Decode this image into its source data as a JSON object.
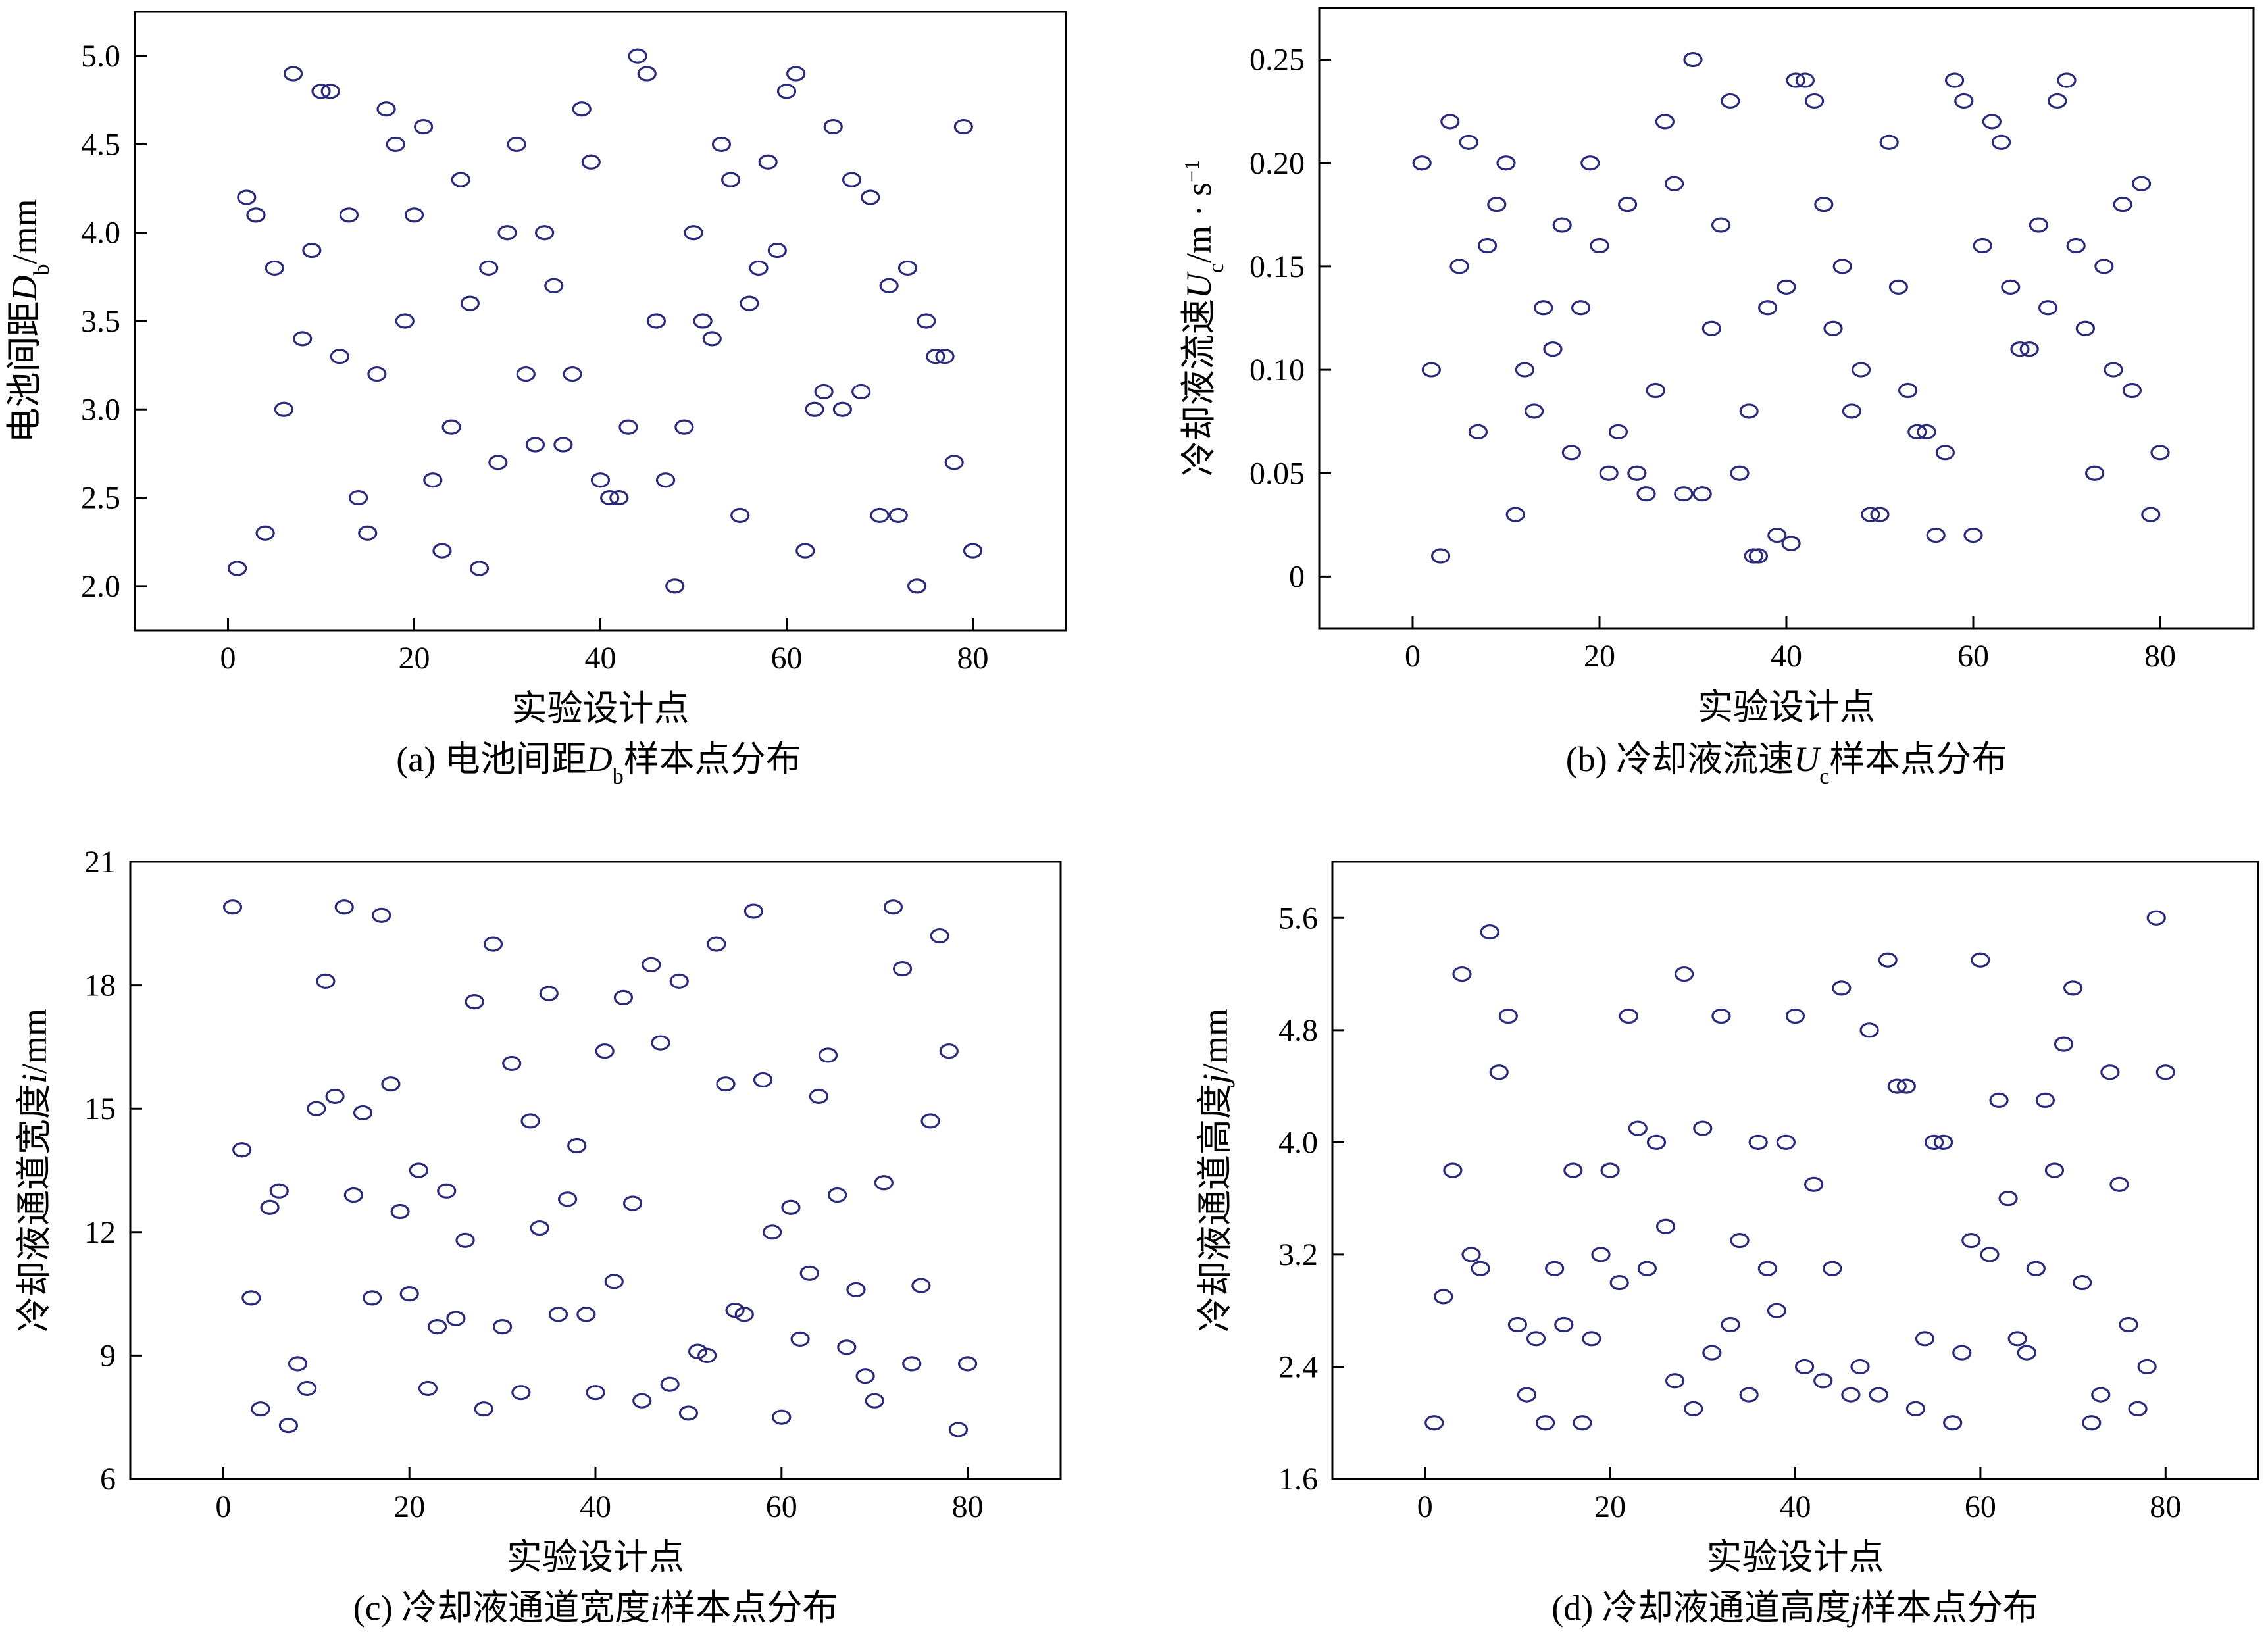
{
  "chart_data": [
    {
      "type": "scatter",
      "caption": {
        "prefix": "(a) 电池间距",
        "sym": "D",
        "sub": "b",
        "suffix": "样本点分布"
      },
      "ylabel": {
        "prefix": "电池间距",
        "sym": "D",
        "sub": "b",
        "suffix": "/mm"
      },
      "xlabel": "实验设计点",
      "xlim": [
        -10,
        90
      ],
      "ylim": [
        1.75,
        5.25
      ],
      "xticks": [
        0,
        20,
        40,
        60,
        80
      ],
      "xtick_labels": [
        "0",
        "20",
        "40",
        "60",
        "80"
      ],
      "yticks": [
        2.0,
        2.5,
        3.0,
        3.5,
        4.0,
        4.5,
        5.0
      ],
      "ytick_labels": [
        "2.0",
        "2.5",
        "3.0",
        "3.5",
        "4.0",
        "4.5",
        "5.0"
      ],
      "points": [
        [
          1,
          2.1
        ],
        [
          2,
          4.2
        ],
        [
          3,
          4.1
        ],
        [
          4,
          2.3
        ],
        [
          5,
          3.8
        ],
        [
          6,
          3.0
        ],
        [
          7,
          4.9
        ],
        [
          8,
          3.4
        ],
        [
          9,
          3.9
        ],
        [
          10,
          4.8
        ],
        [
          11,
          4.8
        ],
        [
          12,
          3.3
        ],
        [
          13,
          4.1
        ],
        [
          14,
          2.5
        ],
        [
          15,
          2.3
        ],
        [
          16,
          3.2
        ],
        [
          17,
          4.7
        ],
        [
          18,
          4.5
        ],
        [
          19,
          3.5
        ],
        [
          20,
          4.1
        ],
        [
          21,
          4.6
        ],
        [
          22,
          2.6
        ],
        [
          23,
          2.2
        ],
        [
          24,
          2.9
        ],
        [
          25,
          4.3
        ],
        [
          26,
          3.6
        ],
        [
          27,
          2.1
        ],
        [
          28,
          3.8
        ],
        [
          29,
          2.7
        ],
        [
          30,
          4.0
        ],
        [
          31,
          4.5
        ],
        [
          32,
          3.2
        ],
        [
          33,
          2.8
        ],
        [
          34,
          4.0
        ],
        [
          35,
          3.7
        ],
        [
          36,
          2.8
        ],
        [
          37,
          3.2
        ],
        [
          38,
          4.7
        ],
        [
          39,
          4.4
        ],
        [
          40,
          2.6
        ],
        [
          41,
          2.5
        ],
        [
          42,
          2.5
        ],
        [
          43,
          2.9
        ],
        [
          44,
          5.0
        ],
        [
          45,
          4.9
        ],
        [
          46,
          3.5
        ],
        [
          47,
          2.6
        ],
        [
          48,
          2.0
        ],
        [
          49,
          2.9
        ],
        [
          50,
          4.0
        ],
        [
          51,
          3.5
        ],
        [
          52,
          3.4
        ],
        [
          53,
          4.5
        ],
        [
          54,
          4.3
        ],
        [
          55,
          2.4
        ],
        [
          56,
          3.6
        ],
        [
          57,
          3.8
        ],
        [
          58,
          4.4
        ],
        [
          59,
          3.9
        ],
        [
          60,
          4.8
        ],
        [
          61,
          4.9
        ],
        [
          62,
          2.2
        ],
        [
          63,
          3.0
        ],
        [
          64,
          3.1
        ],
        [
          65,
          4.6
        ],
        [
          66,
          3.0
        ],
        [
          67,
          4.3
        ],
        [
          68,
          3.1
        ],
        [
          69,
          4.2
        ],
        [
          70,
          2.4
        ],
        [
          71,
          3.7
        ],
        [
          72,
          2.4
        ],
        [
          73,
          3.8
        ],
        [
          74,
          2.0
        ],
        [
          75,
          3.5
        ],
        [
          76,
          3.3
        ],
        [
          77,
          3.3
        ],
        [
          78,
          2.7
        ],
        [
          79,
          4.6
        ],
        [
          80,
          2.2
        ]
      ]
    },
    {
      "type": "scatter",
      "caption": {
        "prefix": "(b) 冷却液流速",
        "sym": "U",
        "sub": "c",
        "suffix": "样本点分布"
      },
      "ylabel": {
        "prefix": "冷却液流速",
        "sym": "U",
        "sub": "c",
        "suffix": "/m · s",
        "sup": "−1"
      },
      "xlabel": "实验设计点",
      "xlim": [
        -10,
        90
      ],
      "ylim": [
        -0.025,
        0.275
      ],
      "xticks": [
        0,
        20,
        40,
        60,
        80
      ],
      "xtick_labels": [
        "0",
        "20",
        "40",
        "60",
        "80"
      ],
      "yticks": [
        0,
        0.05,
        0.1,
        0.15,
        0.2,
        0.25
      ],
      "ytick_labels": [
        "0",
        "0.05",
        "0.10",
        "0.15",
        "0.20",
        "0.25"
      ],
      "points": [
        [
          1,
          0.2
        ],
        [
          2,
          0.1
        ],
        [
          3,
          0.01
        ],
        [
          4,
          0.22
        ],
        [
          5,
          0.15
        ],
        [
          6,
          0.21
        ],
        [
          7,
          0.07
        ],
        [
          8,
          0.16
        ],
        [
          9,
          0.18
        ],
        [
          10,
          0.2
        ],
        [
          11,
          0.03
        ],
        [
          12,
          0.1
        ],
        [
          13,
          0.08
        ],
        [
          14,
          0.13
        ],
        [
          15,
          0.11
        ],
        [
          16,
          0.17
        ],
        [
          17,
          0.06
        ],
        [
          18,
          0.13
        ],
        [
          19,
          0.2
        ],
        [
          20,
          0.16
        ],
        [
          21,
          0.05
        ],
        [
          22,
          0.07
        ],
        [
          23,
          0.18
        ],
        [
          24,
          0.05
        ],
        [
          25,
          0.04
        ],
        [
          26,
          0.09
        ],
        [
          27,
          0.22
        ],
        [
          28,
          0.19
        ],
        [
          29,
          0.04
        ],
        [
          30,
          0.25
        ],
        [
          31,
          0.04
        ],
        [
          32,
          0.12
        ],
        [
          33,
          0.17
        ],
        [
          34,
          0.23
        ],
        [
          35,
          0.05
        ],
        [
          36,
          0.08
        ],
        [
          36.5,
          0.01
        ],
        [
          37,
          0.01
        ],
        [
          38,
          0.13
        ],
        [
          39,
          0.02
        ],
        [
          40,
          0.14
        ],
        [
          40.5,
          0.016
        ],
        [
          41,
          0.24
        ],
        [
          42,
          0.24
        ],
        [
          43,
          0.23
        ],
        [
          44,
          0.18
        ],
        [
          45,
          0.12
        ],
        [
          46,
          0.15
        ],
        [
          47,
          0.08
        ],
        [
          48,
          0.1
        ],
        [
          49,
          0.03
        ],
        [
          50,
          0.03
        ],
        [
          51,
          0.21
        ],
        [
          52,
          0.14
        ],
        [
          53,
          0.09
        ],
        [
          54,
          0.07
        ],
        [
          55,
          0.07
        ],
        [
          56,
          0.02
        ],
        [
          57,
          0.06
        ],
        [
          58,
          0.24
        ],
        [
          59,
          0.23
        ],
        [
          60,
          0.02
        ],
        [
          61,
          0.16
        ],
        [
          62,
          0.22
        ],
        [
          63,
          0.21
        ],
        [
          64,
          0.14
        ],
        [
          65,
          0.11
        ],
        [
          66,
          0.11
        ],
        [
          67,
          0.17
        ],
        [
          68,
          0.13
        ],
        [
          69,
          0.23
        ],
        [
          70,
          0.24
        ],
        [
          71,
          0.16
        ],
        [
          72,
          0.12
        ],
        [
          73,
          0.05
        ],
        [
          74,
          0.15
        ],
        [
          75,
          0.1
        ],
        [
          76,
          0.18
        ],
        [
          77,
          0.09
        ],
        [
          78,
          0.19
        ],
        [
          79,
          0.03
        ],
        [
          80,
          0.06
        ]
      ]
    },
    {
      "type": "scatter",
      "caption": {
        "prefix": "(c) 冷却液通道宽度",
        "sym": "i",
        "sub": "",
        "suffix": "样本点分布"
      },
      "ylabel": {
        "prefix": "冷却液通道宽度",
        "sym": "i",
        "sub": "",
        "suffix": "/mm"
      },
      "xlabel": "实验设计点",
      "xlim": [
        -10,
        90
      ],
      "ylim": [
        6,
        21
      ],
      "xticks": [
        0,
        20,
        40,
        60,
        80
      ],
      "xtick_labels": [
        "0",
        "20",
        "40",
        "60",
        "80"
      ],
      "yticks": [
        6,
        9,
        12,
        15,
        18,
        21
      ],
      "ytick_labels": [
        "6",
        "9",
        "12",
        "15",
        "18",
        "21"
      ],
      "points": [
        [
          1,
          19.9
        ],
        [
          2,
          14.0
        ],
        [
          3,
          10.4
        ],
        [
          4,
          7.7
        ],
        [
          5,
          12.6
        ],
        [
          6,
          13.0
        ],
        [
          7,
          7.3
        ],
        [
          8,
          8.8
        ],
        [
          9,
          8.2
        ],
        [
          10,
          15.0
        ],
        [
          11,
          18.1
        ],
        [
          12,
          15.3
        ],
        [
          13,
          19.9
        ],
        [
          14,
          12.9
        ],
        [
          15,
          14.9
        ],
        [
          16,
          10.4
        ],
        [
          17,
          19.7
        ],
        [
          18,
          15.6
        ],
        [
          19,
          12.5
        ],
        [
          20,
          10.5
        ],
        [
          21,
          13.5
        ],
        [
          22,
          8.2
        ],
        [
          23,
          9.7
        ],
        [
          24,
          13.0
        ],
        [
          25,
          9.9
        ],
        [
          26,
          11.8
        ],
        [
          27,
          17.6
        ],
        [
          28,
          7.7
        ],
        [
          29,
          19.0
        ],
        [
          30,
          9.7
        ],
        [
          31,
          16.1
        ],
        [
          32,
          8.1
        ],
        [
          33,
          14.7
        ],
        [
          34,
          12.1
        ],
        [
          35,
          17.8
        ],
        [
          36,
          10.0
        ],
        [
          37,
          12.8
        ],
        [
          38,
          14.1
        ],
        [
          39,
          10.0
        ],
        [
          40,
          8.1
        ],
        [
          41,
          16.4
        ],
        [
          42,
          10.8
        ],
        [
          43,
          17.7
        ],
        [
          44,
          12.7
        ],
        [
          45,
          7.9
        ],
        [
          46,
          18.5
        ],
        [
          47,
          16.6
        ],
        [
          48,
          8.3
        ],
        [
          49,
          18.1
        ],
        [
          50,
          7.6
        ],
        [
          51,
          9.1
        ],
        [
          52,
          9.0
        ],
        [
          53,
          19.0
        ],
        [
          54,
          15.6
        ],
        [
          55,
          10.1
        ],
        [
          56,
          10.0
        ],
        [
          57,
          19.8
        ],
        [
          58,
          15.7
        ],
        [
          59,
          12.0
        ],
        [
          60,
          7.5
        ],
        [
          61,
          12.6
        ],
        [
          62,
          9.4
        ],
        [
          63,
          11.0
        ],
        [
          64,
          15.3
        ],
        [
          65,
          16.3
        ],
        [
          66,
          12.9
        ],
        [
          67,
          9.2
        ],
        [
          68,
          10.6
        ],
        [
          69,
          8.5
        ],
        [
          70,
          7.9
        ],
        [
          71,
          13.2
        ],
        [
          72,
          19.9
        ],
        [
          73,
          18.4
        ],
        [
          74,
          8.8
        ],
        [
          75,
          10.7
        ],
        [
          76,
          14.7
        ],
        [
          77,
          19.2
        ],
        [
          78,
          16.4
        ],
        [
          79,
          7.2
        ],
        [
          80,
          8.8
        ]
      ]
    },
    {
      "type": "scatter",
      "caption": {
        "prefix": "(d) 冷却液通道高度",
        "sym": "j",
        "sub": "",
        "suffix": "样本点分布"
      },
      "ylabel": {
        "prefix": "冷却液通道高度",
        "sym": "j",
        "sub": "",
        "suffix": "/mm"
      },
      "xlabel": "实验设计点",
      "xlim": [
        -10,
        90
      ],
      "ylim": [
        1.6,
        6.0
      ],
      "xticks": [
        0,
        20,
        40,
        60,
        80
      ],
      "xtick_labels": [
        "0",
        "20",
        "40",
        "60",
        "80"
      ],
      "yticks": [
        1.6,
        2.4,
        3.2,
        4.0,
        4.8,
        5.6
      ],
      "ytick_labels": [
        "1.6",
        "2.4",
        "3.2",
        "4.0",
        "4.8",
        "5.6"
      ],
      "points": [
        [
          1,
          2.0
        ],
        [
          2,
          2.9
        ],
        [
          3,
          3.8
        ],
        [
          4,
          5.2
        ],
        [
          5,
          3.2
        ],
        [
          6,
          3.1
        ],
        [
          7,
          5.5
        ],
        [
          8,
          4.5
        ],
        [
          9,
          4.9
        ],
        [
          10,
          2.7
        ],
        [
          11,
          2.2
        ],
        [
          12,
          2.6
        ],
        [
          13,
          2.0
        ],
        [
          14,
          3.1
        ],
        [
          15,
          2.7
        ],
        [
          16,
          3.8
        ],
        [
          17,
          2.0
        ],
        [
          18,
          2.6
        ],
        [
          19,
          3.2
        ],
        [
          20,
          3.8
        ],
        [
          21,
          3.0
        ],
        [
          22,
          4.9
        ],
        [
          23,
          4.1
        ],
        [
          24,
          3.1
        ],
        [
          25,
          4.0
        ],
        [
          26,
          3.4
        ],
        [
          27,
          2.3
        ],
        [
          28,
          5.2
        ],
        [
          29,
          2.1
        ],
        [
          30,
          4.1
        ],
        [
          31,
          2.5
        ],
        [
          32,
          4.9
        ],
        [
          33,
          2.7
        ],
        [
          34,
          3.3
        ],
        [
          35,
          2.2
        ],
        [
          36,
          4.0
        ],
        [
          37,
          3.1
        ],
        [
          38,
          2.8
        ],
        [
          39,
          4.0
        ],
        [
          40,
          4.9
        ],
        [
          41,
          2.4
        ],
        [
          42,
          3.7
        ],
        [
          43,
          2.3
        ],
        [
          44,
          3.1
        ],
        [
          45,
          5.1
        ],
        [
          46,
          2.2
        ],
        [
          47,
          2.4
        ],
        [
          48,
          4.8
        ],
        [
          49,
          2.2
        ],
        [
          50,
          5.3
        ],
        [
          51,
          4.4
        ],
        [
          52,
          4.4
        ],
        [
          53,
          2.1
        ],
        [
          54,
          2.6
        ],
        [
          55,
          4.0
        ],
        [
          56,
          4.0
        ],
        [
          57,
          2.0
        ],
        [
          58,
          2.5
        ],
        [
          59,
          3.3
        ],
        [
          60,
          5.3
        ],
        [
          61,
          3.2
        ],
        [
          62,
          4.3
        ],
        [
          63,
          3.6
        ],
        [
          64,
          2.6
        ],
        [
          65,
          2.5
        ],
        [
          66,
          3.1
        ],
        [
          67,
          4.3
        ],
        [
          68,
          3.8
        ],
        [
          69,
          4.7
        ],
        [
          70,
          5.1
        ],
        [
          71,
          3.0
        ],
        [
          72,
          2.0
        ],
        [
          73,
          2.2
        ],
        [
          74,
          4.5
        ],
        [
          75,
          3.7
        ],
        [
          76,
          2.7
        ],
        [
          77,
          2.1
        ],
        [
          78,
          2.4
        ],
        [
          79,
          5.6
        ],
        [
          80,
          4.5
        ]
      ]
    }
  ],
  "colors": {
    "marker": "#2a2a78",
    "axis": "#000000"
  }
}
